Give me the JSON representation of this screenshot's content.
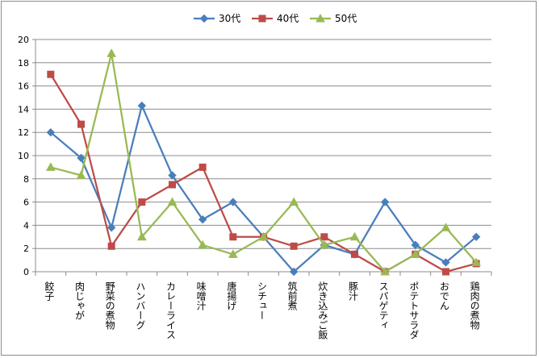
{
  "chart_data": {
    "type": "line",
    "title": "",
    "xlabel": "",
    "ylabel": "",
    "ylim": [
      0,
      20
    ],
    "yticks": [
      0,
      2,
      4,
      6,
      8,
      10,
      12,
      14,
      16,
      18,
      20
    ],
    "grid": "horizontal",
    "legend_position": "top",
    "categories": [
      "餃子",
      "肉じゃが",
      "野菜の煮物",
      "ハンバーグ",
      "カレーライス",
      "味噌汁",
      "唐揚げ",
      "シチュー",
      "筑前煮",
      "炊き込みご飯",
      "豚汁",
      "スパゲティ",
      "ポテトサラダ",
      "おでん",
      "鶏肉の煮物"
    ],
    "series": [
      {
        "name": "30代",
        "color": "#4a7ebb",
        "marker": "diamond",
        "values": [
          12,
          9.8,
          3.8,
          14.3,
          8.3,
          4.5,
          6,
          3,
          0,
          2.3,
          1.5,
          6,
          2.3,
          0.8,
          3
        ]
      },
      {
        "name": "40代",
        "color": "#be4b48",
        "marker": "square",
        "values": [
          17,
          12.7,
          2.2,
          6,
          7.5,
          9,
          3,
          3,
          2.2,
          3,
          1.5,
          0,
          1.5,
          0,
          0.7
        ]
      },
      {
        "name": "50代",
        "color": "#98b954",
        "marker": "triangle",
        "values": [
          9,
          8.3,
          18.8,
          3,
          6,
          2.3,
          1.5,
          3,
          6,
          2.3,
          3,
          0,
          1.5,
          3.8,
          0.8
        ]
      }
    ]
  }
}
